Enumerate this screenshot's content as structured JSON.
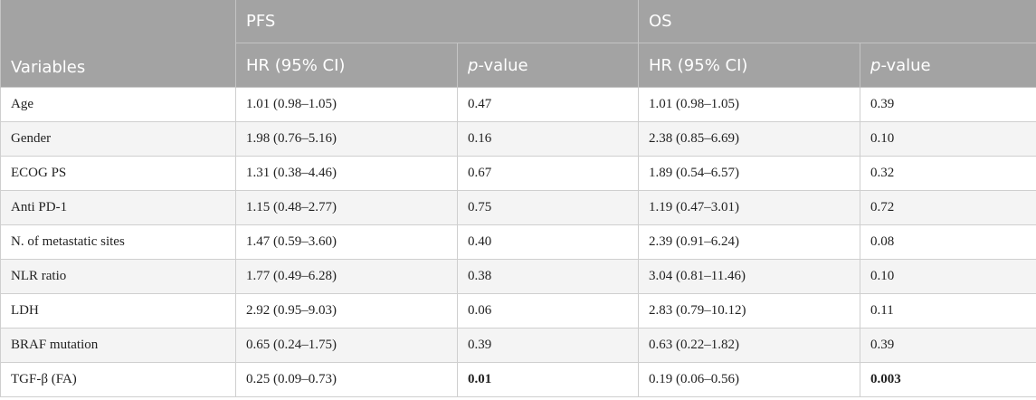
{
  "header": {
    "variables": "Variables",
    "groups": [
      {
        "label": "PFS"
      },
      {
        "label": "OS"
      }
    ],
    "hr": "HR (95% CI)",
    "p_prefix": "p",
    "p_suffix": "-value"
  },
  "rows": [
    {
      "variable": "Age",
      "pfs_hr": "1.01 (0.98–1.05)",
      "pfs_p": "0.47",
      "os_hr": "1.01 (0.98–1.05)",
      "os_p": "0.39"
    },
    {
      "variable": "Gender",
      "pfs_hr": "1.98 (0.76–5.16)",
      "pfs_p": "0.16",
      "os_hr": "2.38 (0.85–6.69)",
      "os_p": "0.10"
    },
    {
      "variable": "ECOG PS",
      "pfs_hr": "1.31 (0.38–4.46)",
      "pfs_p": "0.67",
      "os_hr": "1.89 (0.54–6.57)",
      "os_p": "0.32"
    },
    {
      "variable": "Anti PD-1",
      "pfs_hr": "1.15 (0.48–2.77)",
      "pfs_p": "0.75",
      "os_hr": "1.19 (0.47–3.01)",
      "os_p": "0.72"
    },
    {
      "variable": "N. of metastatic sites",
      "pfs_hr": "1.47 (0.59–3.60)",
      "pfs_p": "0.40",
      "os_hr": "2.39 (0.91–6.24)",
      "os_p": "0.08"
    },
    {
      "variable": "NLR ratio",
      "pfs_hr": "1.77 (0.49–6.28)",
      "pfs_p": "0.38",
      "os_hr": "3.04 (0.81–11.46)",
      "os_p": "0.10"
    },
    {
      "variable": "LDH",
      "pfs_hr": "2.92 (0.95–9.03)",
      "pfs_p": "0.06",
      "os_hr": "2.83 (0.79–10.12)",
      "os_p": "0.11"
    },
    {
      "variable": "BRAF mutation",
      "pfs_hr": "0.65 (0.24–1.75)",
      "pfs_p": "0.39",
      "os_hr": "0.63 (0.22–1.82)",
      "os_p": "0.39"
    },
    {
      "variable": "TGF-β (FA)",
      "pfs_hr": "0.25 (0.09–0.73)",
      "pfs_p": "0.01",
      "os_hr": "0.19 (0.06–0.56)",
      "os_p": "0.003",
      "bold_p": true
    }
  ]
}
